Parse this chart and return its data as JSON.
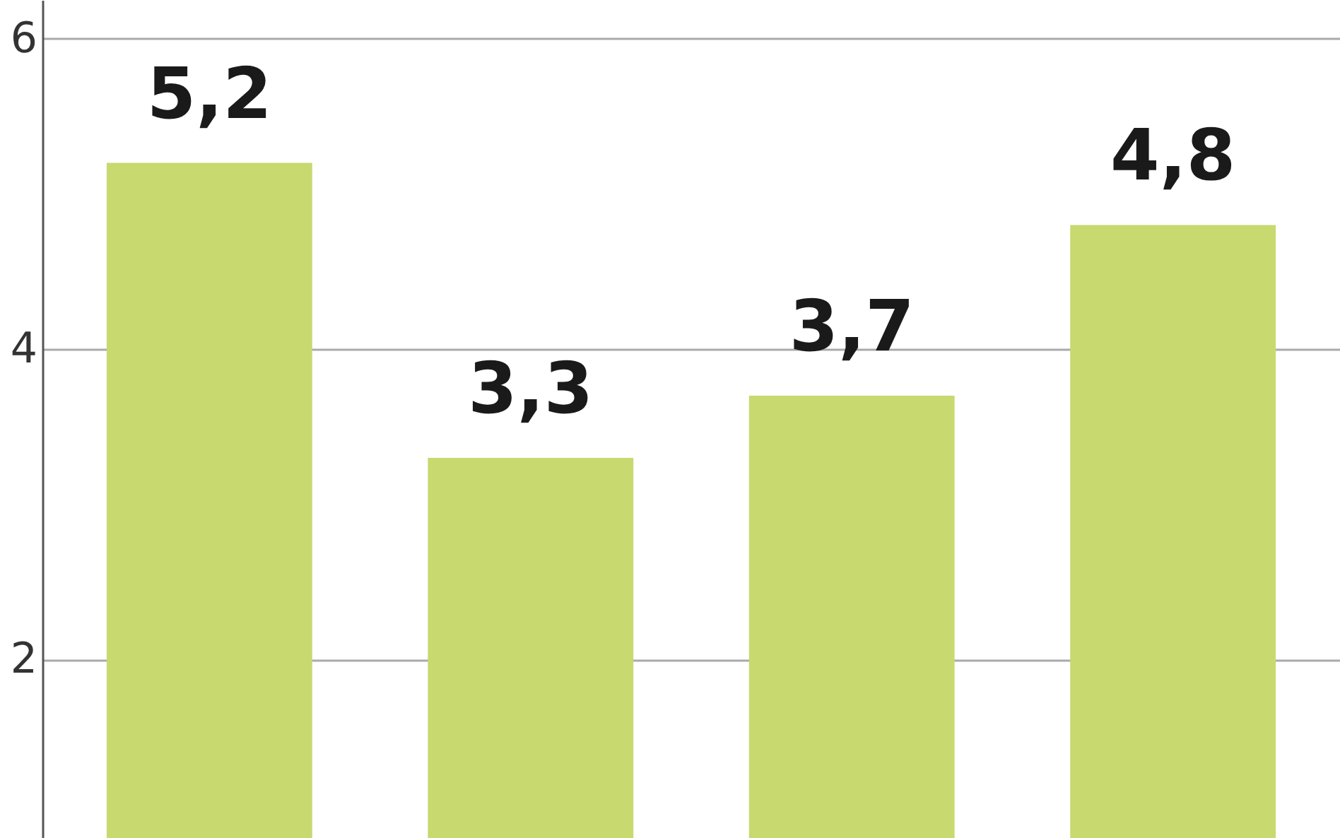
{
  "chart_data": {
    "type": "bar",
    "categories": [
      null,
      null,
      null,
      null
    ],
    "values": [
      5.2,
      3.3,
      3.7,
      4.8
    ],
    "color": "#c8d96f",
    "value_labels": [
      "5,2",
      "3,3",
      "3,7",
      "4,8"
    ],
    "ylim": [
      0.85,
      6.25
    ],
    "yticks": [
      2,
      4,
      6
    ],
    "grid": "y"
  }
}
